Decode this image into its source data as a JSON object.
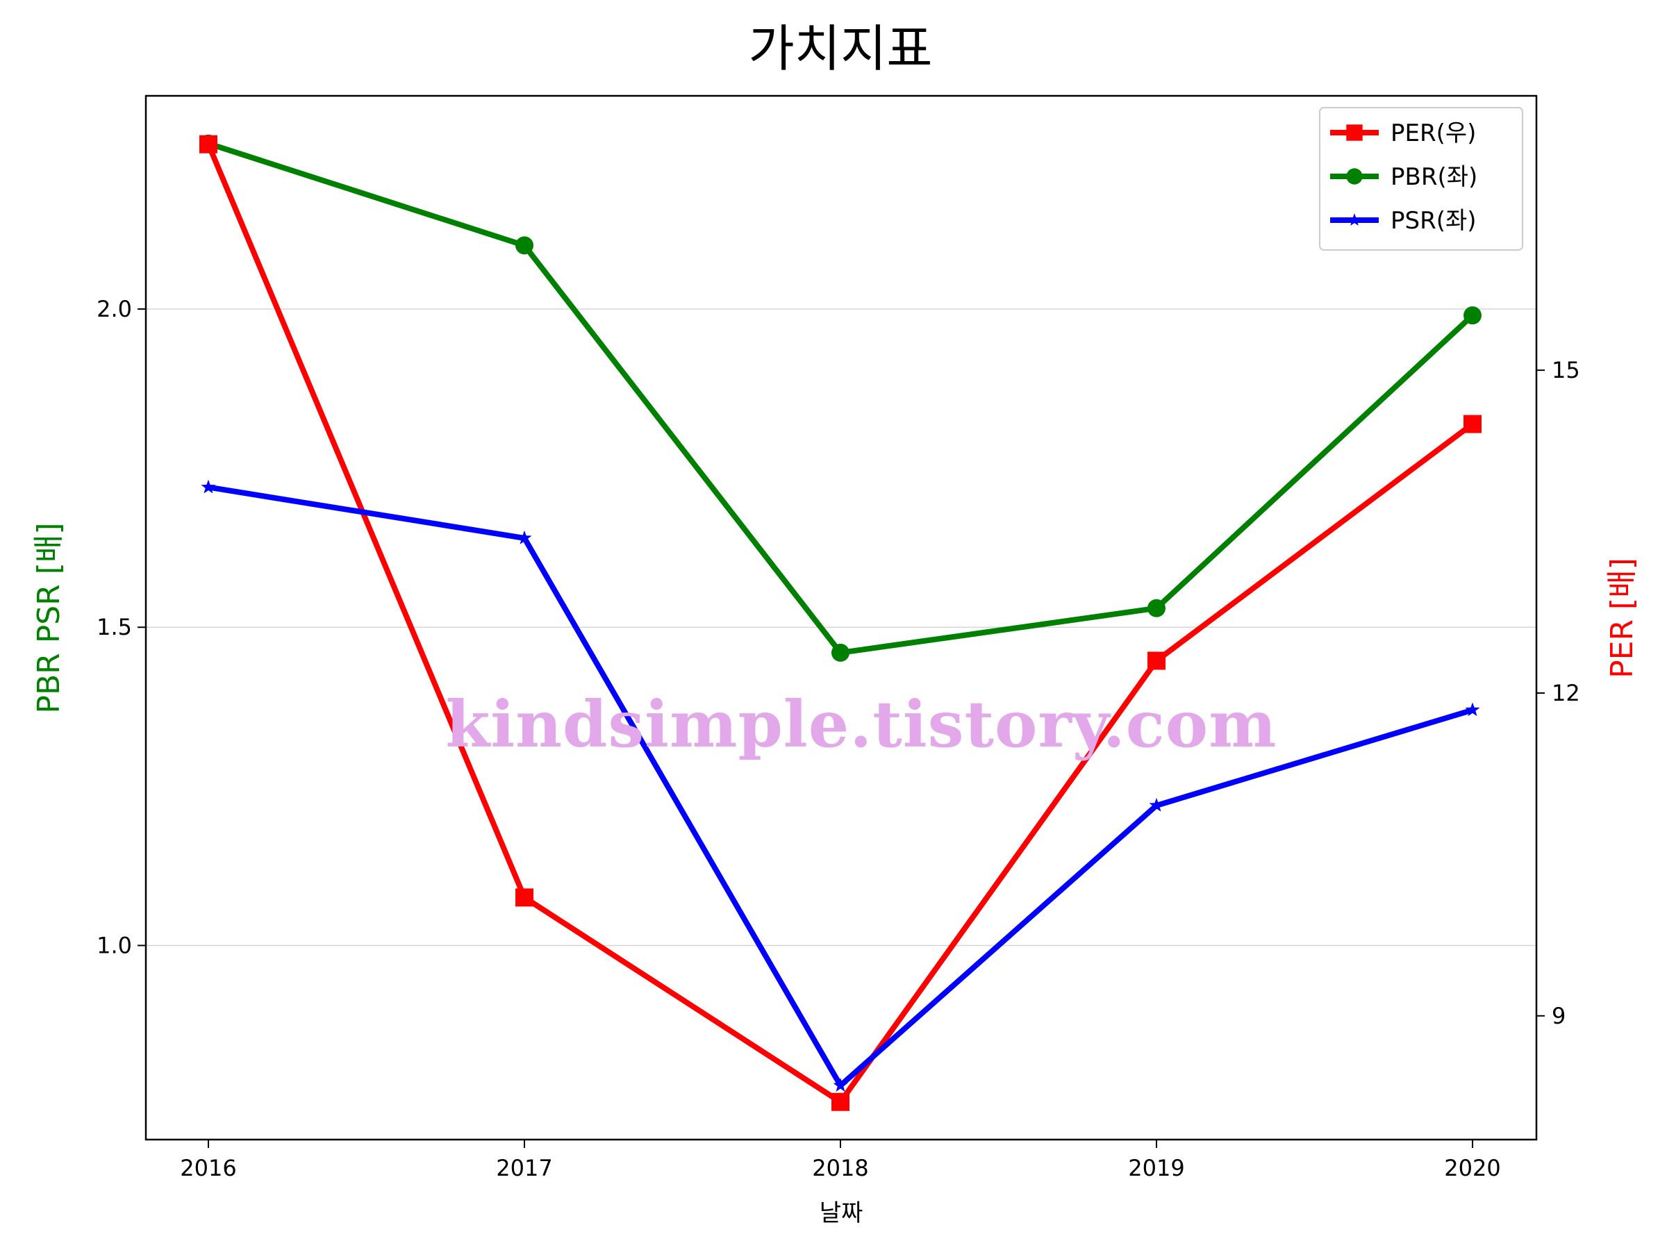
{
  "chart_data": {
    "type": "line",
    "title": "가치지표",
    "xlabel": "날짜",
    "ylabel_left": "PBR PSR [배]",
    "ylabel_right": "PER [배]",
    "categories": [
      "2016",
      "2017",
      "2018",
      "2019",
      "2020"
    ],
    "left_ylim": [
      0.695,
      2.335
    ],
    "right_ylim": [
      7.85,
      17.55
    ],
    "left_ticks": [
      1.0,
      1.5,
      2.0
    ],
    "left_tick_labels": [
      "1.0",
      "1.5",
      "2.0"
    ],
    "right_ticks": [
      9,
      12,
      15
    ],
    "right_tick_labels": [
      "9",
      "12",
      "15"
    ],
    "grid": "horizontal (left axis)",
    "legend_position": "top-right",
    "series": [
      {
        "name": "PER(우)",
        "axis": "right",
        "color": "#ff0000",
        "marker": "square",
        "values": [
          17.1,
          10.1,
          8.2,
          12.3,
          14.5
        ]
      },
      {
        "name": "PBR(좌)",
        "axis": "left",
        "color": "#008000",
        "marker": "circle",
        "values": [
          2.26,
          2.1,
          1.46,
          1.53,
          1.99
        ]
      },
      {
        "name": "PSR(좌)",
        "axis": "left",
        "color": "#0000ff",
        "marker": "star",
        "values": [
          1.72,
          1.64,
          0.78,
          1.22,
          1.37
        ]
      }
    ],
    "watermark": "kindsimple.tistory.com"
  }
}
